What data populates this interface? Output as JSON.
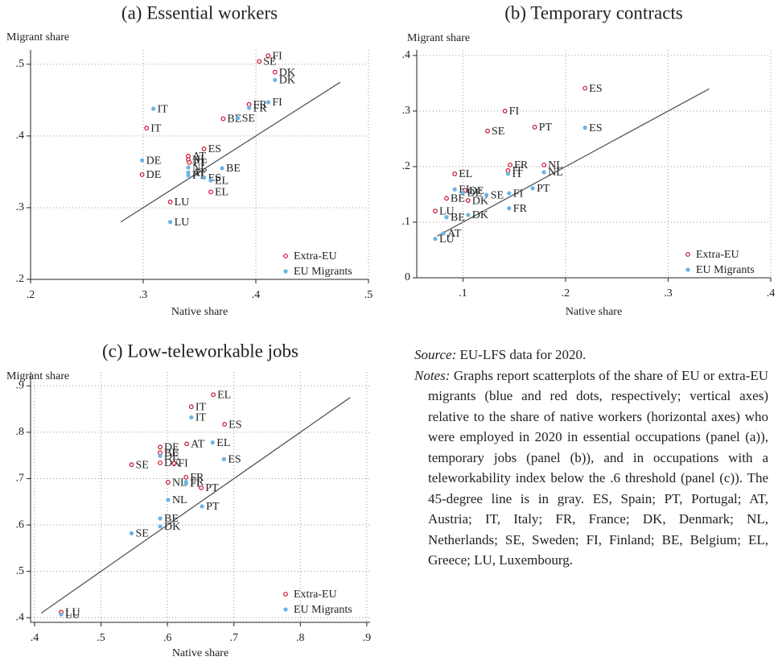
{
  "chart_data": [
    {
      "type": "scatter",
      "title": "(a) Essential workers",
      "x_label": "Native share",
      "y_label": "Migrant share",
      "xlim": [
        0.2,
        0.5
      ],
      "ylim": [
        0.2,
        0.52
      ],
      "xticks": [
        {
          "value": 0.2,
          "label": ".2"
        },
        {
          "value": 0.3,
          "label": ".3"
        },
        {
          "value": 0.4,
          "label": ".4"
        },
        {
          "value": 0.5,
          "label": ".5"
        }
      ],
      "yticks": [
        {
          "value": 0.2,
          "label": ".2"
        },
        {
          "value": 0.3,
          "label": ".3"
        },
        {
          "value": 0.4,
          "label": ".4"
        },
        {
          "value": 0.5,
          "label": ".5"
        }
      ],
      "grid": true,
      "legend": "lower right",
      "line45": [
        0.28,
        0.475
      ],
      "line_color": "#555555",
      "series": [
        {
          "name": "Extra-EU",
          "color": "#c8102e",
          "marker": "hollow",
          "labels": [
            "FI",
            "SE",
            "DK",
            "FR",
            "BE",
            "IT",
            "ES",
            "AT",
            "NL",
            "PT",
            "DE",
            "EL",
            "LU"
          ],
          "x": [
            0.411,
            0.403,
            0.417,
            0.394,
            0.371,
            0.303,
            0.354,
            0.34,
            0.34,
            0.341,
            0.299,
            0.36,
            0.324
          ],
          "values": [
            0.512,
            0.504,
            0.489,
            0.444,
            0.424,
            0.411,
            0.382,
            0.372,
            0.367,
            0.363,
            0.346,
            0.322,
            0.308
          ]
        },
        {
          "name": "EU Migrants",
          "color": "#6cb4e4",
          "marker": "filled",
          "labels": [
            "DK",
            "FI",
            "FR",
            "SE",
            "IT",
            "DE",
            "BE",
            "NL",
            "AT",
            "PT",
            "ES",
            "EL",
            "LU"
          ],
          "x": [
            0.417,
            0.411,
            0.394,
            0.384,
            0.309,
            0.299,
            0.37,
            0.34,
            0.34,
            0.34,
            0.354,
            0.36,
            0.324
          ],
          "values": [
            0.478,
            0.447,
            0.439,
            0.425,
            0.438,
            0.366,
            0.355,
            0.356,
            0.349,
            0.345,
            0.342,
            0.338,
            0.28
          ]
        }
      ]
    },
    {
      "type": "scatter",
      "title": "(b) Temporary contracts",
      "x_label": "Native share",
      "y_label": "Migrant share",
      "xlim": [
        0.055,
        0.4
      ],
      "ylim": [
        0,
        0.41
      ],
      "xticks": [
        {
          "value": 0.1,
          "label": ".1"
        },
        {
          "value": 0.2,
          "label": ".2"
        },
        {
          "value": 0.3,
          "label": ".3"
        },
        {
          "value": 0.4,
          "label": ".4"
        }
      ],
      "yticks": [
        0,
        {
          "value": 0.1,
          "label": ".1"
        },
        {
          "value": 0.2,
          "label": ".2"
        },
        {
          "value": 0.3,
          "label": ".3"
        },
        {
          "value": 0.4,
          "label": ".4"
        }
      ],
      "grid": true,
      "legend": "lower right",
      "line45": [
        0.075,
        0.34
      ],
      "line_color": "#555555",
      "series": [
        {
          "name": "Extra-EU",
          "color": "#c8102e",
          "marker": "hollow",
          "labels": [
            "ES",
            "FI",
            "SE",
            "PT",
            "EL",
            "FR",
            "NL",
            "IT",
            "DE",
            "BE",
            "DK",
            "LU"
          ],
          "x": [
            0.219,
            0.141,
            0.124,
            0.17,
            0.092,
            0.146,
            0.179,
            0.144,
            0.102,
            0.084,
            0.105,
            0.073
          ],
          "values": [
            0.341,
            0.3,
            0.264,
            0.271,
            0.187,
            0.203,
            0.203,
            0.193,
            0.157,
            0.143,
            0.139,
            0.12
          ]
        },
        {
          "name": "EU Migrants",
          "color": "#6cb4e4",
          "marker": "filled",
          "labels": [
            "ES",
            "FI",
            "IT",
            "NL",
            "PT",
            "SE",
            "FR",
            "EL",
            "DE",
            "BE",
            "DK",
            "AT",
            "LU"
          ],
          "x": [
            0.219,
            0.145,
            0.144,
            0.179,
            0.168,
            0.123,
            0.145,
            0.092,
            0.1,
            0.084,
            0.105,
            0.081,
            0.073
          ],
          "values": [
            0.27,
            0.152,
            0.187,
            0.19,
            0.161,
            0.149,
            0.125,
            0.159,
            0.153,
            0.109,
            0.113,
            0.08,
            0.07
          ]
        }
      ]
    },
    {
      "type": "scatter",
      "title": "(c) Low-teleworkable jobs",
      "x_label": "Native share",
      "y_label": "Migrant share",
      "xlim": [
        0.394,
        0.905
      ],
      "ylim": [
        0.39,
        0.93
      ],
      "xticks": [
        {
          "value": 0.4,
          "label": ".4"
        },
        {
          "value": 0.5,
          "label": ".5"
        },
        {
          "value": 0.6,
          "label": ".6"
        },
        {
          "value": 0.7,
          "label": ".7"
        },
        {
          "value": 0.8,
          "label": ".8"
        },
        {
          "value": 0.9,
          "label": ".9"
        }
      ],
      "yticks": [
        {
          "value": 0.4,
          "label": ".4"
        },
        {
          "value": 0.5,
          "label": ".5"
        },
        {
          "value": 0.6,
          "label": ".6"
        },
        {
          "value": 0.7,
          "label": ".7"
        },
        {
          "value": 0.8,
          "label": ".8"
        },
        {
          "value": 0.9,
          "label": ".9"
        }
      ],
      "grid": true,
      "legend": "lower right",
      "line45": [
        0.41,
        0.875
      ],
      "line_color": "#555555",
      "series": [
        {
          "name": "Extra-EU",
          "color": "#c8102e",
          "marker": "hollow",
          "labels": [
            "EL",
            "IT",
            "ES",
            "AT",
            "DE",
            "BE",
            "DK",
            "SE",
            "FI",
            "NL",
            "FR",
            "PT",
            "LU"
          ],
          "x": [
            0.669,
            0.636,
            0.686,
            0.629,
            0.589,
            0.589,
            0.589,
            0.546,
            0.61,
            0.601,
            0.628,
            0.651,
            0.44
          ],
          "values": [
            0.881,
            0.855,
            0.817,
            0.775,
            0.768,
            0.756,
            0.734,
            0.73,
            0.733,
            0.692,
            0.703,
            0.68,
            0.412
          ]
        },
        {
          "name": "EU Migrants",
          "color": "#6cb4e4",
          "marker": "filled",
          "labels": [
            "IT",
            "EL",
            "ES",
            "DE",
            "FR",
            "FI",
            "NL",
            "PT",
            "BE",
            "DK",
            "SE",
            "LU"
          ],
          "x": [
            0.636,
            0.668,
            0.685,
            0.589,
            0.628,
            0.628,
            0.601,
            0.652,
            0.589,
            0.589,
            0.546,
            0.44
          ],
          "values": [
            0.832,
            0.778,
            0.742,
            0.749,
            0.693,
            0.69,
            0.654,
            0.64,
            0.614,
            0.597,
            0.582,
            0.407
          ]
        }
      ]
    }
  ],
  "notes": {
    "source_label": "Source:",
    "source": "EU-LFS data for 2020.",
    "notes_label": "Notes:",
    "notes": "Graphs report scatterplots of the share of EU or extra-EU migrants (blue and red dots, respectively; vertical axes) relative to the share of native workers (horizontal axes) who were employed in 2020 in essential occupations (panel (a)), temporary jobs (panel (b)), and in occupations with a teleworkability index below the .6 threshold (panel (c)). The 45-degree line is in gray. ES, Spain; PT, Portugal; AT, Austria; IT, Italy; FR, France; DK, Denmark; NL, Netherlands; SE, Sweden; FI, Finland; BE, Belgium; EL, Greece; LU, Luxembourg."
  }
}
